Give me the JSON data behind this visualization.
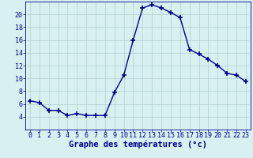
{
  "hours": [
    0,
    1,
    2,
    3,
    4,
    5,
    6,
    7,
    8,
    9,
    10,
    11,
    12,
    13,
    14,
    15,
    16,
    17,
    18,
    19,
    20,
    21,
    22,
    23
  ],
  "temperatures": [
    6.5,
    6.2,
    5.0,
    5.0,
    4.2,
    4.5,
    4.2,
    4.2,
    4.2,
    7.8,
    10.5,
    16.0,
    21.0,
    21.5,
    21.0,
    20.3,
    19.5,
    14.5,
    13.8,
    13.0,
    12.0,
    10.8,
    10.5,
    9.5
  ],
  "xlabel": "Graphe des températures (°c)",
  "xlim": [
    -0.5,
    23.5
  ],
  "ylim": [
    2,
    22
  ],
  "yticks": [
    4,
    6,
    8,
    10,
    12,
    14,
    16,
    18,
    20
  ],
  "xticks": [
    0,
    1,
    2,
    3,
    4,
    5,
    6,
    7,
    8,
    9,
    10,
    11,
    12,
    13,
    14,
    15,
    16,
    17,
    18,
    19,
    20,
    21,
    22,
    23
  ],
  "line_color": "#00008b",
  "marker": "+",
  "marker_size": 4,
  "bg_color": "#d8f0f0",
  "grid_color": "#b0cece",
  "xlabel_color": "#00008b",
  "xlabel_fontsize": 7.5,
  "tick_fontsize": 6.0,
  "linewidth": 1.0
}
